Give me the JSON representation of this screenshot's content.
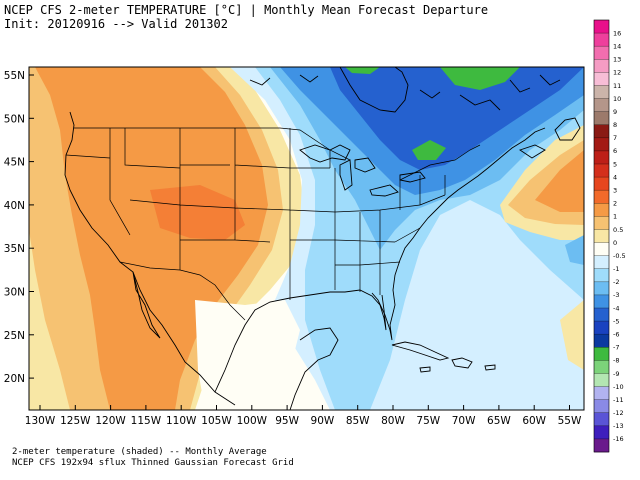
{
  "header": {
    "line1": "NCEP CFS 2-meter TEMPERATURE [°C] | Monthly Mean Forecast Departure",
    "line2": "Init: 20120916 --> Valid 201302"
  },
  "footer": {
    "line1": "2-meter temperature (shaded) -- Monthly Average",
    "line2": "NCEP CFS 192x94 sflux Thinned Gaussian Forecast Grid"
  },
  "axes": {
    "lat_ticks": [
      "55N",
      "50N",
      "45N",
      "40N",
      "35N",
      "30N",
      "25N",
      "20N"
    ],
    "lon_ticks": [
      "130W",
      "125W",
      "120W",
      "115W",
      "110W",
      "105W",
      "100W",
      "95W",
      "90W",
      "85W",
      "80W",
      "75W",
      "70W",
      "65W",
      "60W",
      "55W"
    ]
  },
  "colorbar": {
    "labels": [
      "16",
      "14",
      "13",
      "12",
      "11",
      "10",
      "9",
      "8",
      "7",
      "6",
      "5",
      "4",
      "3",
      "2",
      "1",
      "0.5",
      "0",
      "-0.5",
      "-1",
      "-2",
      "-3",
      "-4",
      "-5",
      "-6",
      "-7",
      "-8",
      "-9",
      "-10",
      "-11",
      "-12",
      "-13",
      "-16"
    ],
    "colors": [
      "#e8108a",
      "#ee3f9c",
      "#f26eaf",
      "#f59cc4",
      "#f7bdd6",
      "#cbb4aa",
      "#b4968a",
      "#9c7a6b",
      "#8a1a14",
      "#a31a14",
      "#bd1f18",
      "#d42f1c",
      "#e6461f",
      "#f26a2a",
      "#f59a45",
      "#f6c272",
      "#f8e7a5",
      "#fffef5",
      "#d4efff",
      "#9fdcfb",
      "#6cbdf2",
      "#3f92e4",
      "#2561cf",
      "#1a42c0",
      "#0b3aa0",
      "#3eba3f",
      "#7cd37a",
      "#b3e6b2",
      "#b2b3f0",
      "#8a8ae6",
      "#5a54d6",
      "#3e1ebd",
      "#6a1a8c"
    ],
    "legend_labels_top_to_bottom": [
      "16",
      "14",
      "13",
      "12",
      "11",
      "10",
      "9",
      "8",
      "7",
      "6",
      "5",
      "4",
      "3",
      "2",
      "1",
      "0.5",
      "0",
      "-0.5",
      "-1",
      "-2",
      "-3",
      "-4",
      "-5",
      "-6",
      "-7",
      "-8",
      "-9",
      "-10",
      "-11",
      "-12",
      "-13",
      "-16"
    ]
  }
}
